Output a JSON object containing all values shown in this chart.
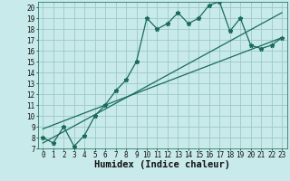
{
  "title": "",
  "xlabel": "Humidex (Indice chaleur)",
  "bg_color": "#c8eaea",
  "grid_color": "#9ec8c8",
  "line_color": "#1a6b5a",
  "xlim": [
    -0.5,
    23.5
  ],
  "ylim": [
    7,
    20.5
  ],
  "xticks": [
    0,
    1,
    2,
    3,
    4,
    5,
    6,
    7,
    8,
    9,
    10,
    11,
    12,
    13,
    14,
    15,
    16,
    17,
    18,
    19,
    20,
    21,
    22,
    23
  ],
  "yticks": [
    7,
    8,
    9,
    10,
    11,
    12,
    13,
    14,
    15,
    16,
    17,
    18,
    19,
    20
  ],
  "data_x": [
    0,
    1,
    2,
    3,
    4,
    5,
    6,
    7,
    8,
    9,
    10,
    11,
    12,
    13,
    14,
    15,
    16,
    17,
    18,
    19,
    20,
    21,
    22,
    23
  ],
  "data_y": [
    8.0,
    7.5,
    9.0,
    7.2,
    8.2,
    10.0,
    11.0,
    12.3,
    13.3,
    15.0,
    19.0,
    18.0,
    18.5,
    19.5,
    18.5,
    19.0,
    20.2,
    20.5,
    17.8,
    19.0,
    16.5,
    16.2,
    16.5,
    17.2
  ],
  "line1_x": [
    0,
    23
  ],
  "line1_y": [
    7.5,
    19.5
  ],
  "line2_x": [
    0,
    23
  ],
  "line2_y": [
    8.8,
    17.2
  ],
  "xlabel_fontsize": 7.5,
  "tick_fontsize": 5.5
}
